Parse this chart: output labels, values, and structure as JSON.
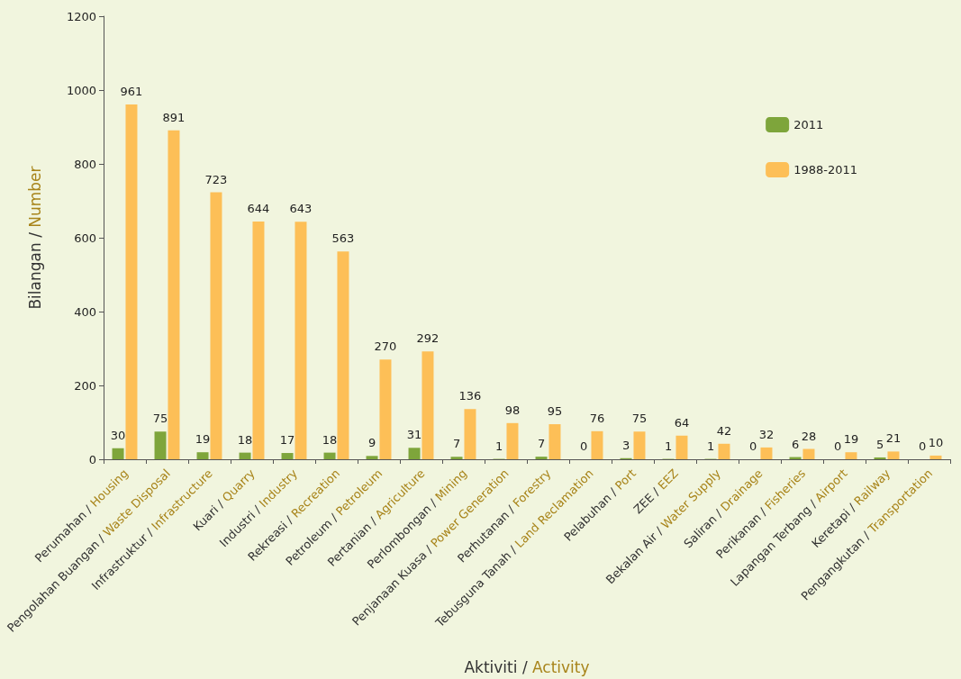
{
  "chart_data": {
    "type": "bar",
    "xlabel": "Aktiviti / Activity",
    "ylabel": "Bilangan / Number",
    "categories": [
      "Perumahan / Housing",
      "Pengolahan Buangan / Waste Disposal",
      "Infrastruktur / Infrastructure",
      "Kuari / Quarry",
      "Industri / Industry",
      "Rekreasi / Recreation",
      "Petroleum / Petroleum",
      "Pertanian / Agriculture",
      "Perlombongan / Mining",
      "Penjanaan Kuasa / Power Generation",
      "Perhutanan / Forestry",
      "Tebusguna Tanah / Land Reclamation",
      "Pelabuhan / Port",
      "ZEE / EEZ",
      "Bekalan Air / Water Supply",
      "Saliran / Drainage",
      "Perikanan / Fisheries",
      "Lapangan Terbang / Airport",
      "Keretapi / Railway",
      "Pengangkutan / Transportation"
    ],
    "series": [
      {
        "name": "2011",
        "color": "#7ea53b",
        "values": [
          30,
          75,
          19,
          18,
          17,
          18,
          9,
          31,
          7,
          1,
          7,
          0,
          3,
          1,
          1,
          0,
          6,
          0,
          5,
          0
        ]
      },
      {
        "name": "1988-2011",
        "color": "#fdbf57",
        "values": [
          961,
          891,
          723,
          644,
          643,
          563,
          270,
          292,
          136,
          98,
          95,
          76,
          75,
          64,
          42,
          32,
          28,
          19,
          21,
          10
        ]
      }
    ],
    "ylim": [
      0,
      1200
    ],
    "yticks": [
      0,
      200,
      400,
      600,
      800,
      1000,
      1200
    ],
    "grid": false,
    "legend": "top right",
    "data_labels": true
  }
}
